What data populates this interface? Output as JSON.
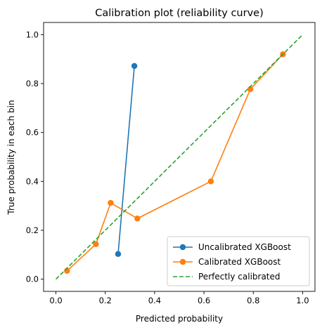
{
  "chart_data": {
    "type": "line",
    "title": "Calibration plot (reliability curve)",
    "xlabel": "Predicted probability",
    "ylabel": "True probability in each bin",
    "xlim": [
      -0.05,
      1.05
    ],
    "ylim": [
      -0.05,
      1.05
    ],
    "xticks": [
      "0.0",
      "0.2",
      "0.4",
      "0.6",
      "0.8",
      "1.0"
    ],
    "yticks": [
      "0.0",
      "0.2",
      "0.4",
      "0.6",
      "0.8",
      "1.0"
    ],
    "grid": false,
    "legend_position": "bottom-right",
    "series": [
      {
        "name": "Uncalibrated XGBoost",
        "color": "#1f77b4",
        "style": "solid",
        "marker": "circle",
        "x": [
          0.252,
          0.318
        ],
        "y": [
          0.103,
          0.872
        ]
      },
      {
        "name": "Calibrated XGBoost",
        "color": "#ff7f0e",
        "style": "solid",
        "marker": "circle",
        "x": [
          0.045,
          0.162,
          0.222,
          0.33,
          0.628,
          0.788,
          0.92
        ],
        "y": [
          0.034,
          0.143,
          0.312,
          0.248,
          0.4,
          0.777,
          0.92
        ]
      },
      {
        "name": "Perfectly calibrated",
        "color": "#2ca02c",
        "style": "dashed",
        "marker": "none",
        "x": [
          0.0,
          1.0
        ],
        "y": [
          0.0,
          1.0
        ]
      }
    ]
  }
}
